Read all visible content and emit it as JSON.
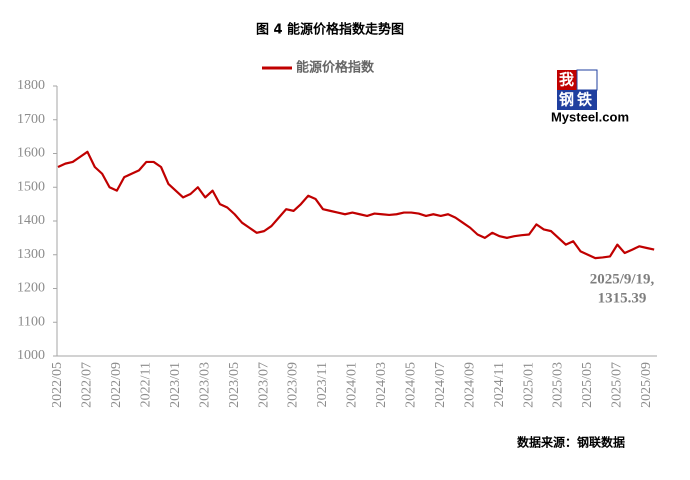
{
  "chart_data": {
    "type": "line",
    "title": "图 4  能源价格指数走势图",
    "logo": {
      "line1": "我的",
      "line2": "钢铁",
      "site": "Mysteel.com"
    },
    "source": "数据来源：钢联数据",
    "annotation": [
      "2025/9/19,",
      "1315.39"
    ],
    "categories": [
      "2022/05",
      null,
      null,
      null,
      "2022/07",
      null,
      null,
      null,
      "2022/09",
      null,
      null,
      null,
      "2022/11",
      null,
      null,
      null,
      "2023/01",
      null,
      null,
      null,
      "2023/03",
      null,
      null,
      null,
      "2023/05",
      null,
      null,
      null,
      "2023/07",
      null,
      null,
      null,
      "2023/09",
      null,
      null,
      null,
      "2023/11",
      null,
      null,
      null,
      "2024/01",
      null,
      null,
      null,
      "2024/03",
      null,
      null,
      null,
      "2024/05",
      null,
      null,
      null,
      "2024/07",
      null,
      null,
      null,
      "2024/09",
      null,
      null,
      null,
      "2024/11",
      null,
      null,
      null,
      "2025/01",
      null,
      null,
      null,
      "2025/03",
      null,
      null,
      null,
      "2025/05",
      null,
      null,
      null,
      "2025/07",
      null,
      null,
      null,
      "2025/09",
      null
    ],
    "series": [
      {
        "name": "能源价格指数",
        "color": "#c00000",
        "values": [
          1560,
          1570,
          1575,
          1590,
          1605,
          1560,
          1540,
          1500,
          1490,
          1530,
          1540,
          1550,
          1575,
          1575,
          1560,
          1510,
          1490,
          1470,
          1480,
          1500,
          1470,
          1490,
          1450,
          1440,
          1420,
          1395,
          1380,
          1365,
          1370,
          1385,
          1410,
          1435,
          1430,
          1450,
          1475,
          1465,
          1435,
          1430,
          1425,
          1420,
          1425,
          1420,
          1415,
          1422,
          1420,
          1418,
          1420,
          1425,
          1425,
          1422,
          1415,
          1420,
          1415,
          1420,
          1410,
          1395,
          1380,
          1360,
          1350,
          1365,
          1355,
          1350,
          1355,
          1358,
          1360,
          1390,
          1375,
          1370,
          1350,
          1330,
          1340,
          1310,
          1300,
          1290,
          1292,
          1295,
          1330,
          1305,
          1315,
          1325,
          1320,
          1315.39
        ]
      }
    ],
    "ylim": [
      1000,
      1800
    ],
    "yticks": [
      1000,
      1100,
      1200,
      1300,
      1400,
      1500,
      1600,
      1700,
      1800
    ],
    "grid": false
  }
}
